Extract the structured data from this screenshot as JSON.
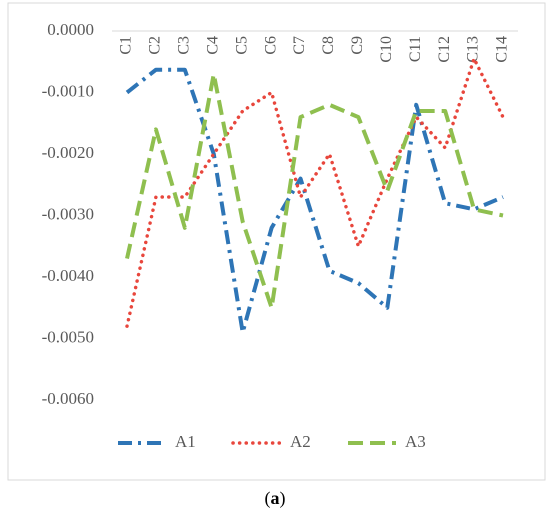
{
  "chart_data": {
    "type": "line",
    "categories": [
      "C1",
      "C2",
      "C3",
      "C4",
      "C5",
      "C6",
      "C7",
      "C8",
      "C9",
      "C10",
      "C11",
      "C12",
      "C13",
      "C14"
    ],
    "series": [
      {
        "name": "A1",
        "color": "#2e75b6",
        "values": [
          -0.001,
          -0.00063,
          -0.00063,
          -0.002,
          -0.0049,
          -0.0032,
          -0.0024,
          -0.0039,
          -0.0041,
          -0.0045,
          -0.0012,
          -0.0028,
          -0.0029,
          -0.0027
        ]
      },
      {
        "name": "A2",
        "color": "#e8463c",
        "values": [
          -0.0048,
          -0.0027,
          -0.0027,
          -0.002,
          -0.0013,
          -0.001,
          -0.0027,
          -0.002,
          -0.0035,
          -0.0024,
          -0.0014,
          -0.0019,
          -0.00045,
          -0.0014
        ]
      },
      {
        "name": "A3",
        "color": "#8fbf4f",
        "values": [
          -0.0037,
          -0.0016,
          -0.0032,
          -0.0007,
          -0.0031,
          -0.0045,
          -0.0014,
          -0.0012,
          -0.0014,
          -0.0026,
          -0.0013,
          -0.0013,
          -0.0029,
          -0.003
        ]
      }
    ],
    "ylim": [
      -0.006,
      0
    ],
    "yticks": [
      {
        "value": 0,
        "label": "0.0000"
      },
      {
        "value": -0.001,
        "label": "-0.0010"
      },
      {
        "value": -0.002,
        "label": "-0.0020"
      },
      {
        "value": -0.003,
        "label": "-0.0030"
      },
      {
        "value": -0.004,
        "label": "-0.0040"
      },
      {
        "value": -0.005,
        "label": "-0.0050"
      },
      {
        "value": -0.006,
        "label": "-0.0060"
      }
    ],
    "legend": "bottom",
    "caption": [
      "(",
      "a",
      ")"
    ]
  }
}
